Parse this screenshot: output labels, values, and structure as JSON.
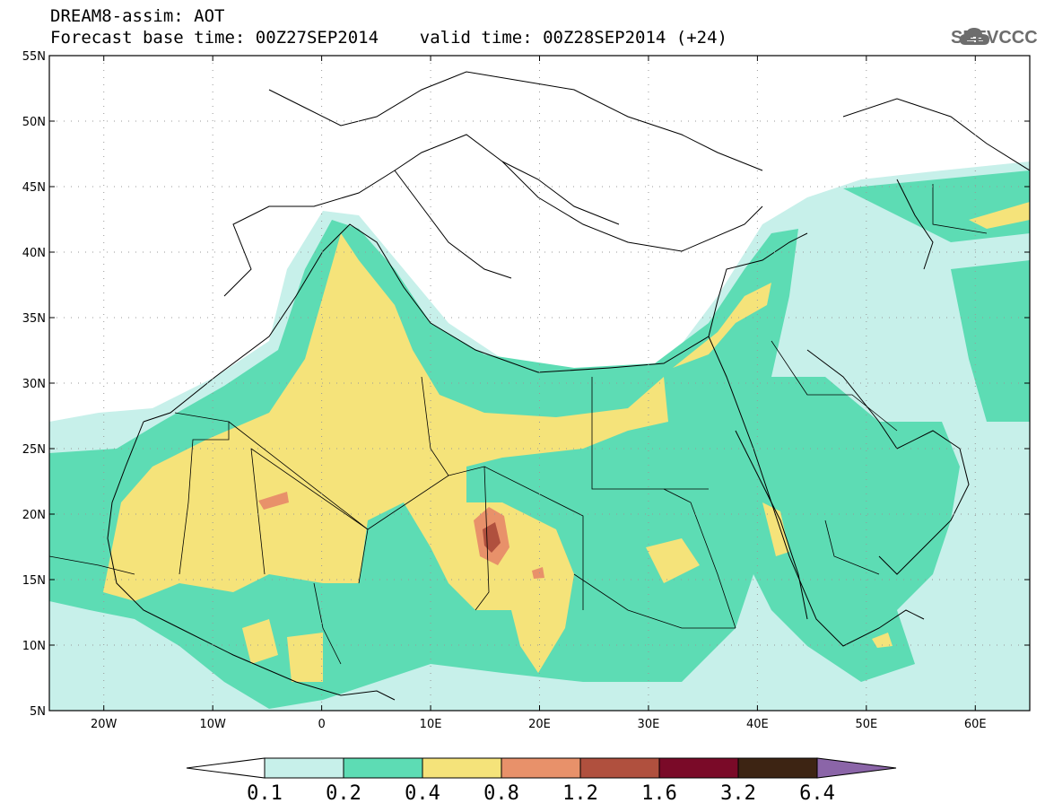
{
  "header": {
    "line1": "DREAM8-assim: AOT",
    "line2": "Forecast base time: 00Z27SEP2014    valid time: 00Z28SEP2014 (+24)"
  },
  "logo": {
    "text": "SEEVCCC",
    "icon": "cloud-logo-icon",
    "color": "#6d6d6d"
  },
  "map": {
    "extent": {
      "lon_min": -25,
      "lon_max": 65,
      "lat_min": 5,
      "lat_max": 55
    },
    "lat_ticks": [
      "5N",
      "10N",
      "15N",
      "20N",
      "25N",
      "30N",
      "35N",
      "40N",
      "45N",
      "50N",
      "55N"
    ],
    "lon_ticks": [
      "20W",
      "10W",
      "0",
      "10E",
      "20E",
      "30E",
      "40E",
      "50E",
      "60E"
    ],
    "lat_values": [
      5,
      10,
      15,
      20,
      25,
      30,
      35,
      40,
      45,
      50,
      55
    ],
    "lon_values": [
      -20,
      -10,
      0,
      10,
      20,
      30,
      40,
      50,
      60
    ]
  },
  "colorbar": {
    "labels": [
      "0.1",
      "0.2",
      "0.4",
      "0.8",
      "1.2",
      "1.6",
      "3.2",
      "6.4"
    ],
    "colors": [
      "#c7f0ea",
      "#5ddcb4",
      "#f5e37a",
      "#e8916a",
      "#b0503e",
      "#7a0a28",
      "#3d2413",
      "#8b65a8"
    ]
  }
}
